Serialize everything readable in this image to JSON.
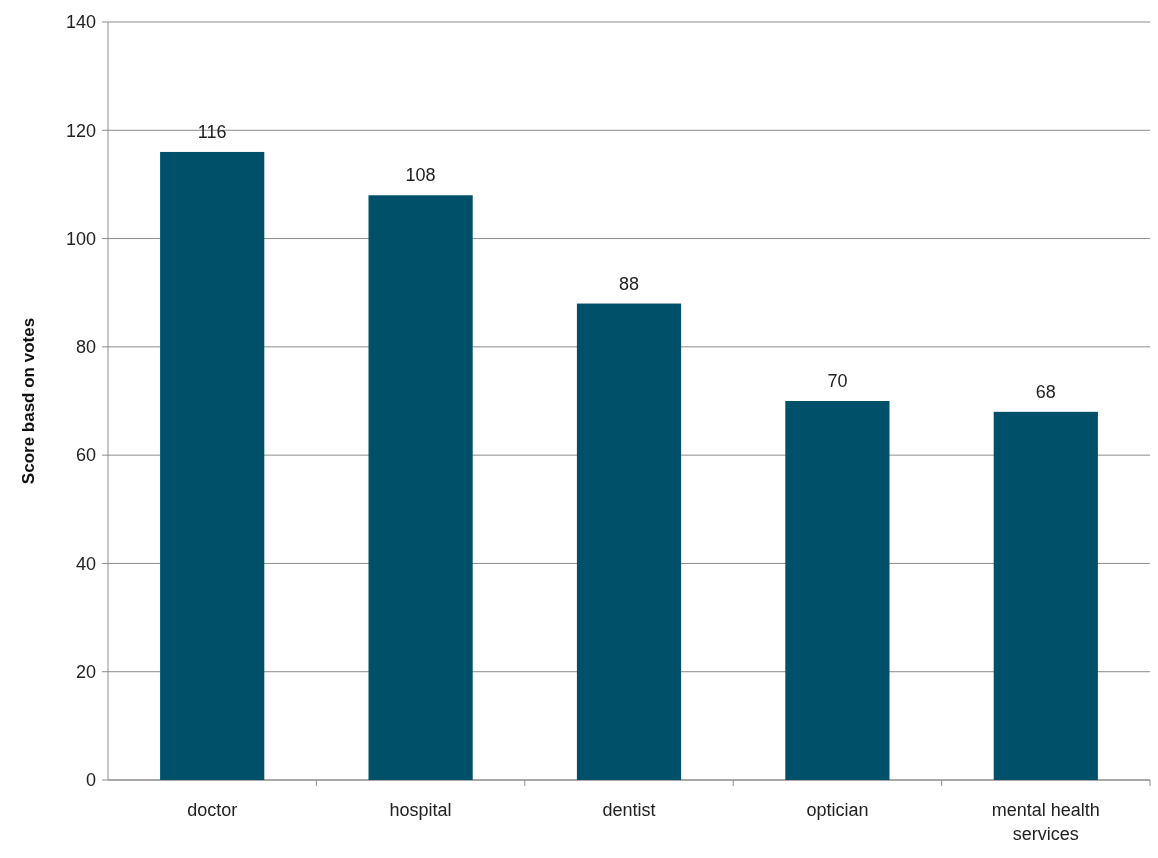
{
  "chart_data": {
    "type": "bar",
    "ylabel": "Score basd on votes",
    "categories": [
      "doctor",
      "hospital",
      "dentist",
      "optician",
      "mental health services"
    ],
    "values": [
      116,
      108,
      88,
      70,
      68
    ],
    "color": "#00506a",
    "ylim": [
      0,
      140
    ],
    "yticks": [
      0,
      20,
      40,
      60,
      80,
      100,
      120,
      140
    ],
    "grid": "y",
    "data_labels": true
  }
}
